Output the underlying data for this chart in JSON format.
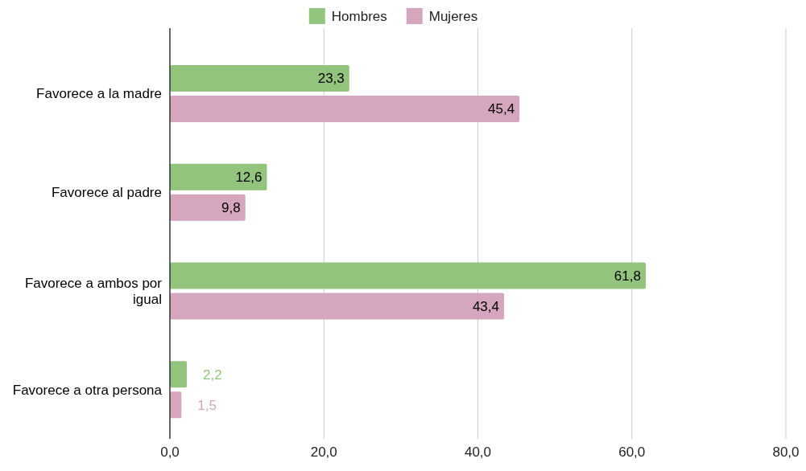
{
  "chart_data": {
    "type": "bar",
    "orientation": "horizontal",
    "categories": [
      "Favorece a la madre",
      "Favorece al padre",
      "Favorece a ambos por igual",
      "Favorece a otra persona"
    ],
    "series": [
      {
        "name": "Hombres",
        "color": "#93c47d",
        "values": [
          23.3,
          12.6,
          61.8,
          2.2
        ],
        "value_labels": [
          "23,3",
          "12,6",
          "61,8",
          "2,2"
        ]
      },
      {
        "name": "Mujeres",
        "color": "#d5a6bd",
        "values": [
          45.4,
          9.8,
          43.4,
          1.5
        ],
        "value_labels": [
          "45,4",
          "9,8",
          "43,4",
          "1,5"
        ]
      }
    ],
    "xlim": [
      0,
      80
    ],
    "xticks": [
      {
        "value": 0,
        "label": "0,0"
      },
      {
        "value": 20,
        "label": "20,0"
      },
      {
        "value": 40,
        "label": "40,0"
      },
      {
        "value": 60,
        "label": "60,0"
      },
      {
        "value": 80,
        "label": "80,0"
      }
    ],
    "grid": "x",
    "legend": "top"
  }
}
